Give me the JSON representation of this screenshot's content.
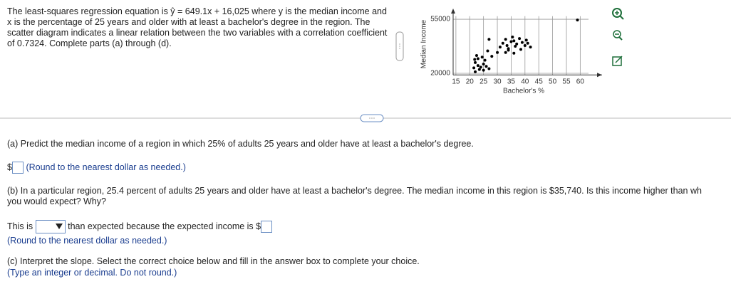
{
  "intro": "The least-squares regression equation is ŷ = 649.1x + 16,025 where y is the median income and x is the percentage of 25 years and older with at least a bachelor's degree in the region. The scatter diagram indicates a linear relation between the two variables with a correlation coefficient of 0.7324. Complete parts (a) through (d).",
  "chart_data": {
    "type": "scatter",
    "x_label": "Bachelor's %",
    "y_label": "Median Income",
    "color": "#000000",
    "grid": true,
    "x": [
      22,
      21.5,
      22,
      23,
      23.5,
      24,
      25,
      25.5,
      24.5,
      22.5,
      23,
      26,
      27,
      25,
      21.8,
      28,
      30,
      31,
      32,
      33,
      33.5,
      34,
      35,
      35.5,
      36,
      36.5,
      37,
      38,
      38.5,
      39,
      40,
      40.5,
      41,
      42,
      33,
      36,
      34,
      27,
      59,
      26.5
    ],
    "y": [
      21000,
      23500,
      27000,
      25000,
      22500,
      24000,
      26000,
      28500,
      30500,
      31500,
      29500,
      24500,
      23000,
      22000,
      29000,
      31000,
      33500,
      37000,
      39500,
      42000,
      38000,
      36000,
      40500,
      43500,
      41000,
      37500,
      39000,
      42500,
      35500,
      40000,
      38000,
      41500,
      39500,
      37000,
      33500,
      33000,
      35000,
      42000,
      54500,
      34500
    ],
    "xlim": [
      14,
      63
    ],
    "ylim": [
      19000,
      57000
    ],
    "xticks": [
      15,
      20,
      25,
      30,
      35,
      40,
      45,
      50,
      55,
      60
    ],
    "yticks": [
      20000,
      55000
    ]
  },
  "part_a": {
    "question": "(a) Predict the median income of a region in which 25% of adults 25 years and older have at least a bachelor's degree.",
    "currency": "$",
    "hint": "(Round to the nearest dollar as needed.)"
  },
  "part_b": {
    "lines": [
      "(b) In a particular region, 25.4 percent of adults 25 years and older have at least a bachelor's degree. The median income in this region is $35,740. Is this income higher than wh",
      "you would expect? Why?"
    ],
    "answer_prefix": "This is",
    "answer_middle": "than expected because the expected income is $",
    "hint": "(Round to the nearest dollar as needed.)"
  },
  "part_c": {
    "question": "(c) Interpret the slope. Select the correct choice below and fill in the answer box to complete your choice.",
    "hint": "(Type an integer or decimal. Do not round.)"
  }
}
